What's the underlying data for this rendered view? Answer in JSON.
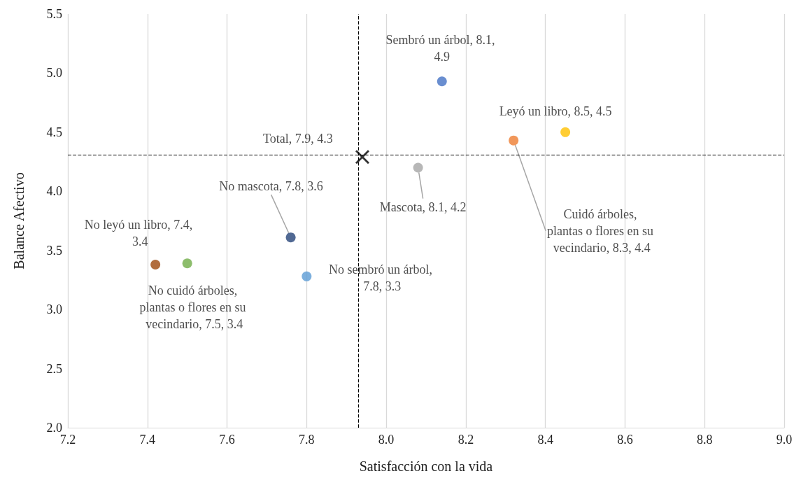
{
  "chart_data": {
    "type": "scatter",
    "xlabel": "Satisfacción con la vida",
    "ylabel": "Balance Afectivo",
    "xlim": [
      7.2,
      9.0
    ],
    "ylim": [
      2.0,
      5.5
    ],
    "xticks": [
      7.2,
      7.4,
      7.6,
      7.8,
      {
        "value": 8,
        "label": "8.0"
      },
      8.2,
      8.4,
      8.6,
      8.8,
      {
        "value": 9,
        "label": "9.0"
      }
    ],
    "yticks": [
      {
        "value": 2,
        "label": "2.0"
      },
      2.5,
      {
        "value": 3,
        "label": "3.0"
      },
      3.5,
      {
        "value": 4,
        "label": "4.0"
      },
      4.5,
      {
        "value": 5,
        "label": "5.0"
      },
      5.5
    ],
    "grid": "x",
    "series": [
      {
        "color": "#4472c4",
        "marker": "circle",
        "x": [
          8.14
        ],
        "values": [
          4.93
        ],
        "value_labels": [
          "Sembró un árbol, 8.1, 4.9"
        ]
      },
      {
        "color": "#ffc000",
        "marker": "circle",
        "x": [
          8.45
        ],
        "values": [
          4.5
        ],
        "value_labels": [
          "Leyó un libro, 8.5, 4.5"
        ]
      },
      {
        "color": "#ed7d31",
        "marker": "circle",
        "x": [
          8.32
        ],
        "values": [
          4.43
        ],
        "value_labels": [
          "Cuidó árboles, plantas o flores en su vecindario, 8.3, 4.4"
        ]
      },
      {
        "color": "#a5a5a5",
        "marker": "circle",
        "x": [
          8.08
        ],
        "values": [
          4.2
        ],
        "value_labels": [
          "Mascota, 8.1, 4.2"
        ]
      },
      {
        "color": "#000000",
        "marker": "cross",
        "x": [
          7.94
        ],
        "values": [
          4.29
        ],
        "value_labels": [
          "Total, 7.9, 4.3"
        ]
      },
      {
        "color": "#264478",
        "marker": "circle",
        "x": [
          7.76
        ],
        "values": [
          3.61
        ],
        "value_labels": [
          "No mascota, 7.8, 3.6"
        ]
      },
      {
        "color": "#9e480e",
        "marker": "circle",
        "x": [
          7.42
        ],
        "values": [
          3.38
        ],
        "value_labels": [
          "No leyó un libro, 7.4, 3.4"
        ]
      },
      {
        "color": "#70ad47",
        "marker": "circle",
        "x": [
          7.5
        ],
        "values": [
          3.39
        ],
        "value_labels": [
          "No cuidó árboles, plantas o flores en su vecindario, 7.5, 3.4"
        ]
      },
      {
        "color": "#5b9bd5",
        "marker": "circle",
        "x": [
          7.8
        ],
        "values": [
          3.28
        ],
        "value_labels": [
          "No sembró un árbol, 7.8, 3.3"
        ]
      }
    ],
    "ref_lines": [
      {
        "axis": "x",
        "value": 7.93,
        "color": "#000000",
        "line_style": "dashed"
      },
      {
        "axis": "y",
        "value": 4.31,
        "color": "#000000",
        "line_style": "dashed"
      }
    ]
  }
}
